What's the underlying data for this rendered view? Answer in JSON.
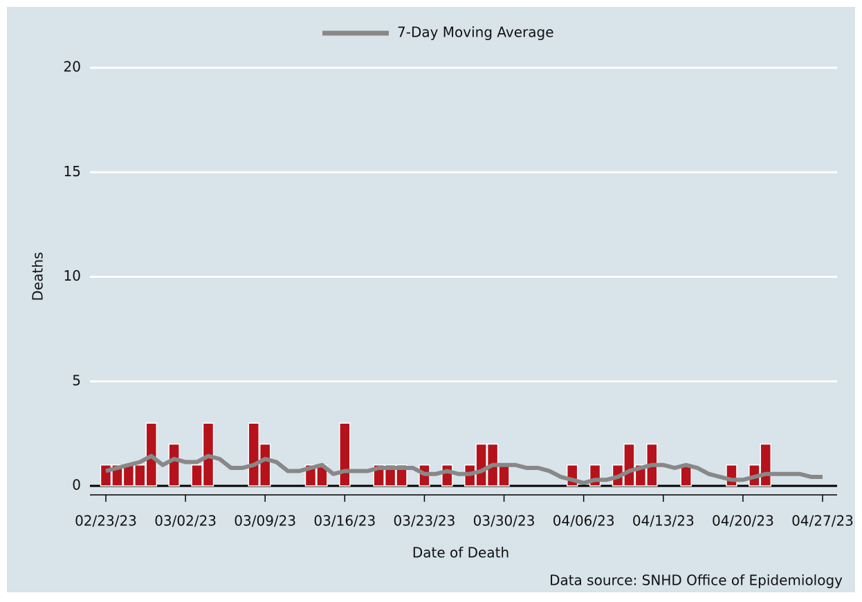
{
  "chart_data": {
    "type": "bar",
    "categories": [
      "02/23/23",
      null,
      null,
      null,
      null,
      null,
      null,
      "03/02/23",
      null,
      null,
      null,
      null,
      null,
      null,
      "03/09/23",
      null,
      null,
      null,
      null,
      null,
      null,
      "03/16/23",
      null,
      null,
      null,
      null,
      null,
      null,
      "03/23/23",
      null,
      null,
      null,
      null,
      null,
      null,
      "03/30/23",
      null,
      null,
      null,
      null,
      null,
      null,
      "04/06/23",
      null,
      null,
      null,
      null,
      null,
      null,
      "04/13/23",
      null,
      null,
      null,
      null,
      null,
      null,
      "04/20/23",
      null,
      null,
      null,
      null,
      null,
      null,
      "04/27/23"
    ],
    "values": [
      1,
      1,
      1,
      1,
      3,
      0,
      2,
      0,
      1,
      3,
      0,
      0,
      0,
      3,
      2,
      0,
      0,
      0,
      1,
      1,
      0,
      3,
      0,
      0,
      1,
      1,
      1,
      0,
      1,
      0,
      1,
      0,
      1,
      2,
      2,
      1,
      0,
      0,
      0,
      0,
      0,
      1,
      0,
      1,
      0,
      1,
      2,
      1,
      2,
      0,
      0,
      1,
      0,
      0,
      0,
      1,
      0,
      1,
      2,
      0,
      0,
      0,
      0,
      0
    ],
    "color": "#b5121b",
    "moving_average": {
      "name": "7-Day Moving Average",
      "color": "#888888",
      "values": [
        0.71,
        0.86,
        1.0,
        1.14,
        1.43,
        1.0,
        1.29,
        1.14,
        1.14,
        1.43,
        1.29,
        0.86,
        0.86,
        1.0,
        1.29,
        1.14,
        0.71,
        0.71,
        0.86,
        1.0,
        0.57,
        0.71,
        0.71,
        0.71,
        0.86,
        0.86,
        0.86,
        0.86,
        0.57,
        0.57,
        0.71,
        0.57,
        0.57,
        0.71,
        1.0,
        1.0,
        1.0,
        0.86,
        0.86,
        0.71,
        0.43,
        0.29,
        0.14,
        0.29,
        0.29,
        0.43,
        0.71,
        0.86,
        1.0,
        1.0,
        0.86,
        1.0,
        0.86,
        0.57,
        0.43,
        0.29,
        0.29,
        0.43,
        0.57,
        0.57,
        0.57,
        0.57,
        0.43,
        0.43
      ]
    },
    "ylim": [
      0,
      20
    ],
    "yticks": [
      0,
      5,
      10,
      15,
      20
    ],
    "grid": true,
    "xlabel": "Date of Death",
    "ylabel": "Deaths",
    "source": "Data source: SNHD Office of Epidemiology"
  }
}
